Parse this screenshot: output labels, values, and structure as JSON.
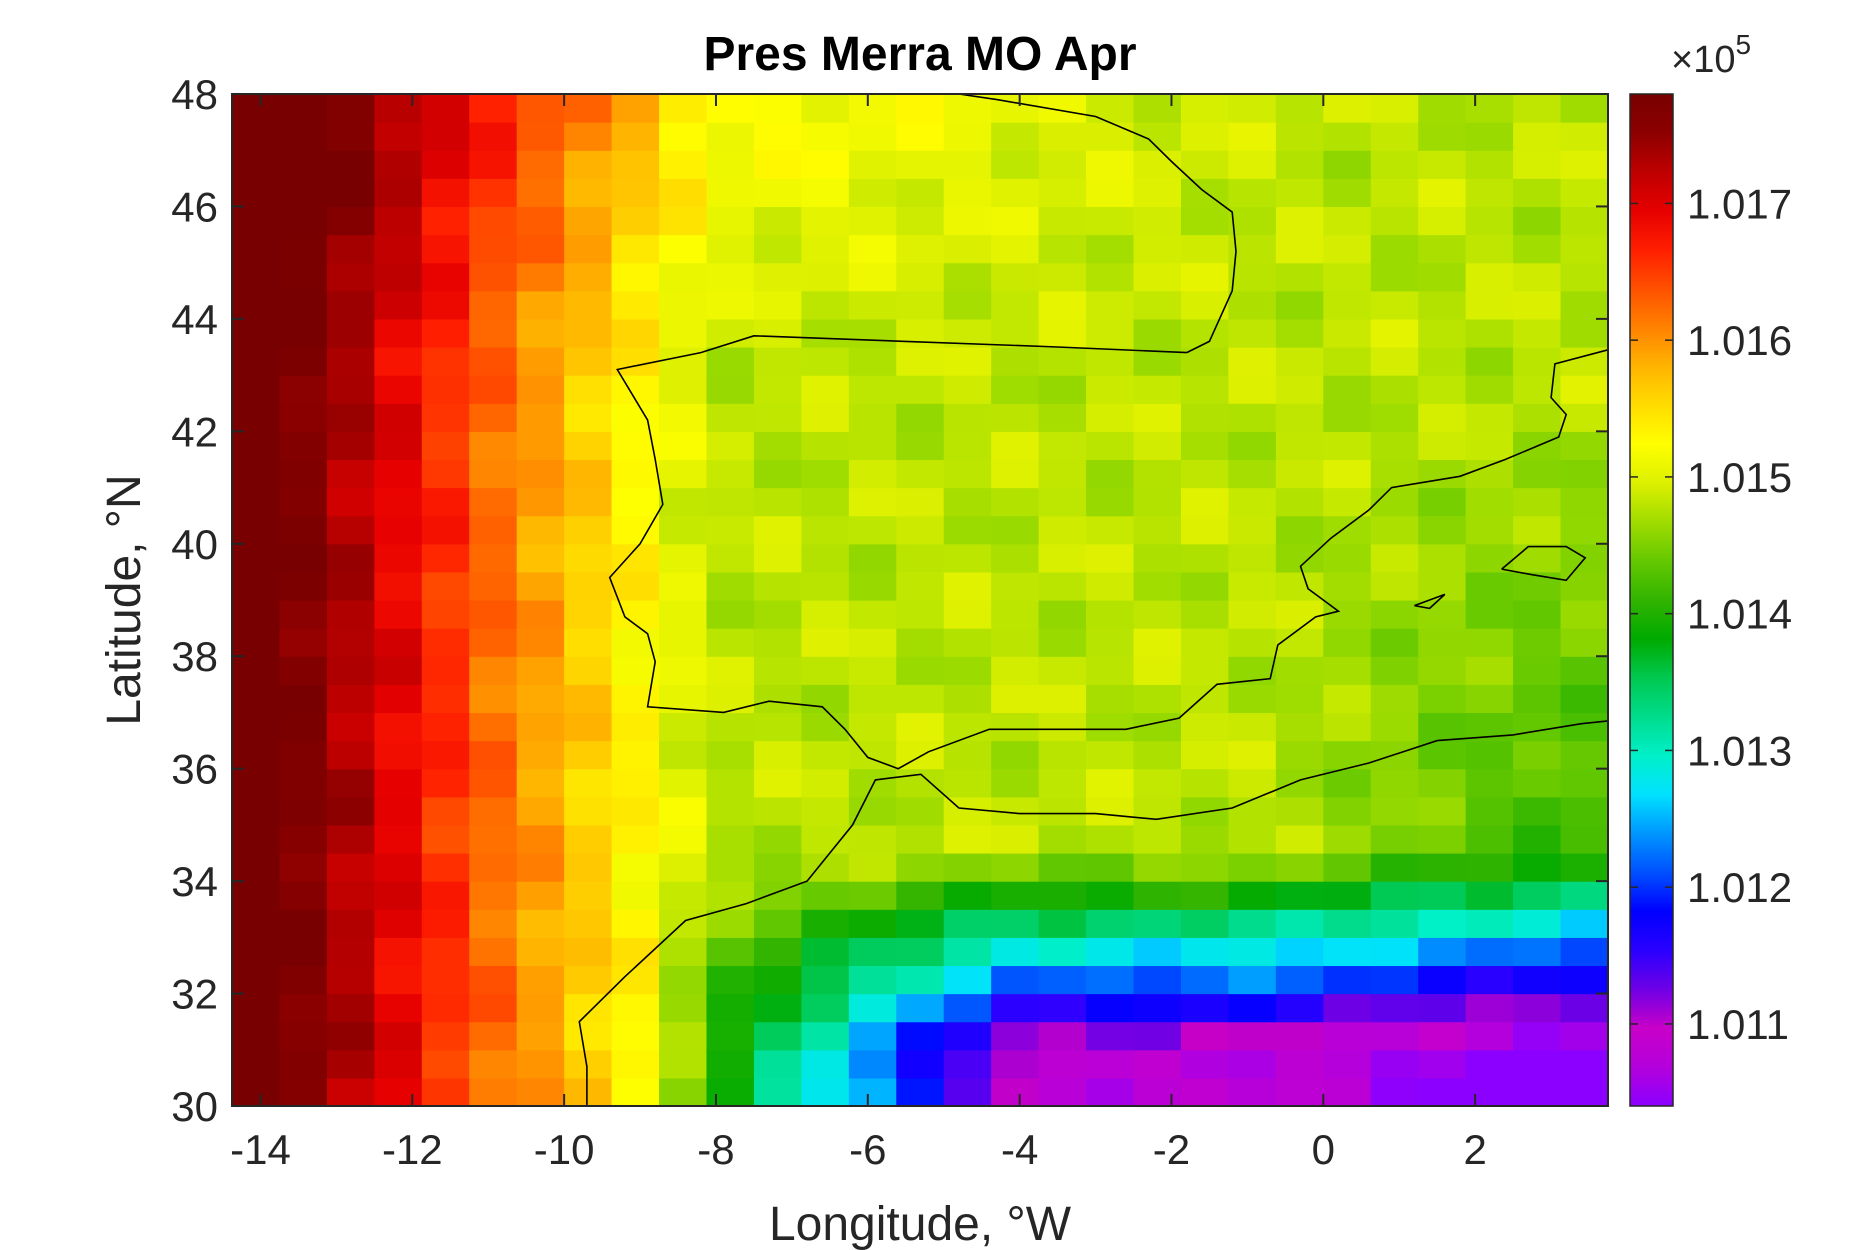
{
  "chart_data": {
    "type": "heatmap",
    "title": "Pres Merra MO Apr",
    "xlabel": "Longitude, °W",
    "ylabel": "Latitude, °N",
    "xlim": [
      -14.375,
      3.75
    ],
    "ylim": [
      30,
      48
    ],
    "x_ticks": [
      -14,
      -12,
      -10,
      -8,
      -6,
      -4,
      -2,
      0,
      2
    ],
    "x_tick_labels": [
      "-14",
      "-12",
      "-10",
      "-8",
      "-6",
      "-4",
      "-2",
      "0",
      "2"
    ],
    "y_ticks": [
      30,
      32,
      34,
      36,
      38,
      40,
      42,
      44,
      46,
      48
    ],
    "y_tick_labels": [
      "30",
      "32",
      "34",
      "36",
      "38",
      "40",
      "42",
      "44",
      "46",
      "48"
    ],
    "grid_lon_step": 0.625,
    "grid_lat_step": 0.5,
    "colorbar": {
      "limits": [
        1.0104,
        1.0178
      ],
      "ticks": [
        1.011,
        1.012,
        1.013,
        1.014,
        1.015,
        1.016,
        1.017
      ],
      "tick_labels": [
        "1.011",
        "1.012",
        "1.013",
        "1.014",
        "1.015",
        "1.016",
        "1.017"
      ],
      "multiplier": "×10",
      "multiplier_exponent": "5",
      "colormap": [
        "#8b00ff",
        "#b400dc",
        "#c800c8",
        "#6e00e6",
        "#2a00ff",
        "#0000ff",
        "#0050ff",
        "#0096ff",
        "#00e1ff",
        "#00f0c8",
        "#00dc8c",
        "#00c850",
        "#00aa00",
        "#32b400",
        "#64c800",
        "#a0dc00",
        "#dcf000",
        "#ffff00",
        "#ffdc00",
        "#ffb400",
        "#ff8200",
        "#ff5000",
        "#ff1e00",
        "#e60000",
        "#be0000",
        "#8c0000",
        "#780000"
      ]
    },
    "description_fields": {
      "west_high": 1.0177,
      "central_plateau": 1.0148,
      "south_low": 1.0108
    }
  }
}
